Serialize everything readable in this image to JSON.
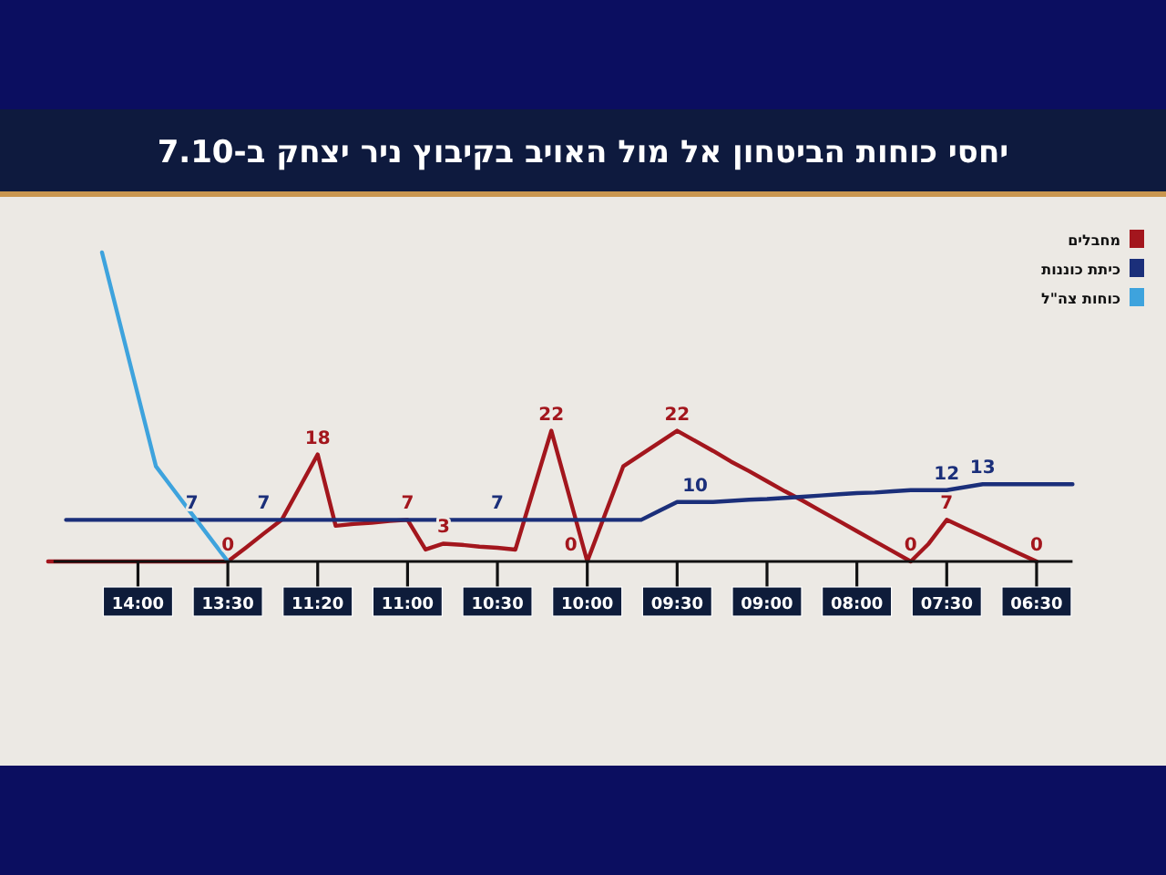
{
  "chart_data": {
    "type": "line",
    "title": "יחסי כוחות הביטחון אל מול האויב בקיבוץ ניר יצחק ב-7.10",
    "categories": [
      null,
      null,
      null,
      null,
      null,
      "14:00",
      null,
      null,
      null,
      null,
      "13:30",
      null,
      null,
      null,
      null,
      "11:20",
      null,
      null,
      null,
      null,
      "11:00",
      null,
      null,
      null,
      null,
      "10:30",
      null,
      null,
      null,
      null,
      "10:00",
      null,
      null,
      null,
      null,
      "09:30",
      null,
      null,
      null,
      null,
      "09:00",
      null,
      null,
      null,
      null,
      "08:00",
      null,
      null,
      null,
      null,
      "07:30",
      null,
      null,
      null,
      null,
      "06:30",
      null,
      null
    ],
    "series": [
      {
        "name": "מחבלים",
        "color": "#a3161d",
        "values": [
          0,
          0,
          0,
          0,
          0,
          0,
          0,
          0,
          0,
          0,
          0,
          2.3,
          4.7,
          7,
          12.5,
          18,
          6,
          6.3,
          6.5,
          6.8,
          7,
          2,
          3,
          2.8,
          2.5,
          2.3,
          2,
          12,
          22,
          11,
          0,
          8,
          16,
          18,
          20,
          22,
          20.3,
          18.6,
          16.8,
          15.2,
          13.5,
          11.8,
          10.2,
          8.5,
          6.8,
          5.1,
          3.4,
          1.7,
          0,
          3,
          7,
          5.6,
          4.2,
          2.8,
          1.4,
          0,
          null,
          null
        ],
        "value_labels": [
          null,
          null,
          null,
          null,
          null,
          null,
          null,
          null,
          null,
          null,
          "0",
          null,
          null,
          null,
          null,
          "18",
          null,
          null,
          null,
          null,
          "7",
          null,
          "3",
          null,
          null,
          null,
          null,
          null,
          "22",
          null,
          "0",
          null,
          null,
          null,
          null,
          "22",
          null,
          null,
          null,
          null,
          null,
          null,
          null,
          null,
          null,
          null,
          null,
          null,
          "0",
          null,
          "7",
          null,
          null,
          null,
          null,
          "0",
          null,
          null
        ]
      },
      {
        "name": "כיתת כוננות",
        "color": "#1b2f7a",
        "values": [
          null,
          7,
          7,
          7,
          7,
          7,
          7,
          7,
          7,
          7,
          7,
          7,
          7,
          7,
          7,
          7,
          7,
          7,
          7,
          7,
          7,
          7,
          7,
          7,
          7,
          7,
          7,
          7,
          7,
          7,
          7,
          7,
          7,
          7,
          8.5,
          10,
          10,
          10,
          10.2,
          10.4,
          10.5,
          10.7,
          10.9,
          11.1,
          11.3,
          11.5,
          11.6,
          11.8,
          12,
          12,
          12,
          12.5,
          13,
          13,
          13,
          13,
          13,
          13
        ],
        "value_labels": [
          null,
          null,
          null,
          null,
          null,
          null,
          null,
          null,
          "7",
          null,
          null,
          null,
          "7",
          null,
          null,
          null,
          null,
          null,
          null,
          null,
          null,
          null,
          null,
          null,
          null,
          "7",
          null,
          null,
          null,
          null,
          null,
          null,
          null,
          null,
          null,
          null,
          "10",
          null,
          null,
          null,
          null,
          null,
          null,
          null,
          null,
          null,
          null,
          null,
          null,
          null,
          "12",
          null,
          "13",
          null,
          null,
          null,
          null,
          null
        ]
      },
      {
        "name": "כוחות צה\"ל",
        "color": "#3ea3dd",
        "values": [
          null,
          null,
          null,
          52,
          40,
          28,
          16,
          12,
          8,
          4,
          0,
          null,
          null,
          null,
          null,
          null,
          null,
          null,
          null,
          null,
          null,
          null,
          null,
          null,
          null,
          null,
          null,
          null,
          null,
          null,
          null,
          null,
          null,
          null,
          null,
          null,
          null,
          null,
          null,
          null,
          null,
          null,
          null,
          null,
          null,
          null,
          null,
          null,
          null,
          null,
          null,
          null,
          null,
          null,
          null,
          null,
          null,
          null
        ]
      }
    ],
    "legend": "top right",
    "marker": "none",
    "line_style": "solid"
  }
}
